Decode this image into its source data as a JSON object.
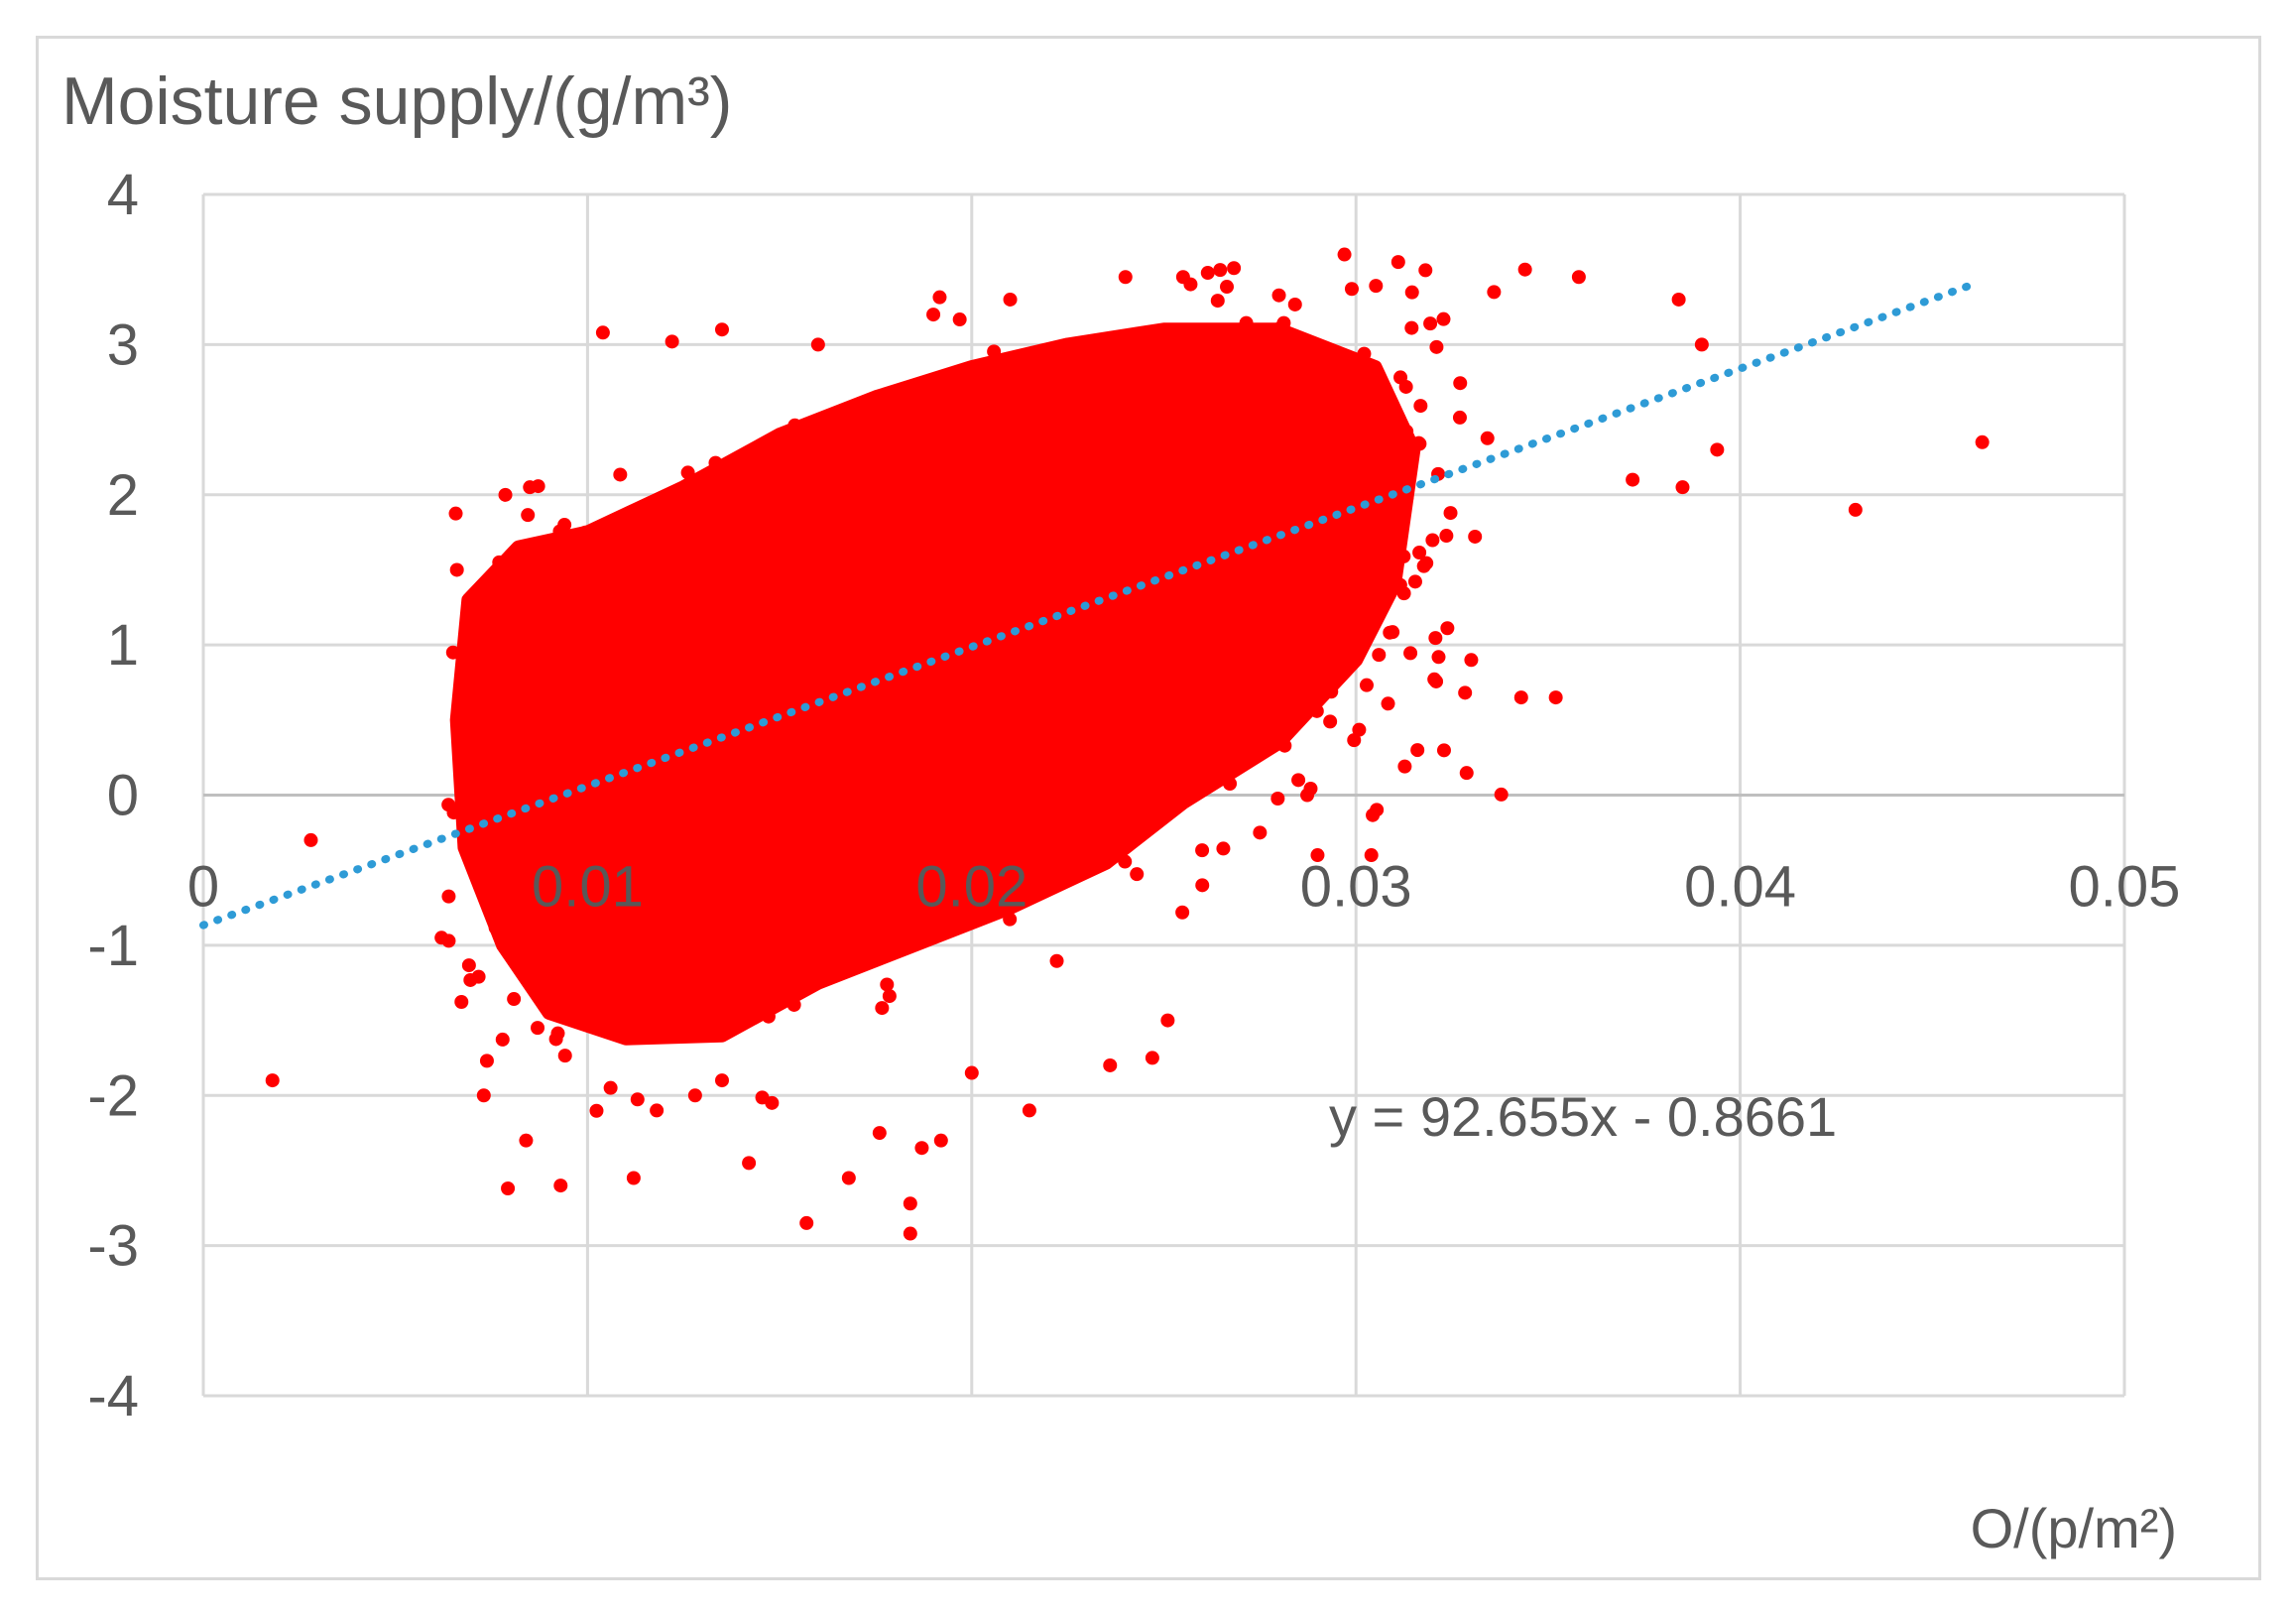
{
  "chart_data": {
    "type": "scatter",
    "title": "Moisture supply/(g/m³)",
    "xlabel": "O/(p/m²)",
    "ylabel": "",
    "xlim": [
      0,
      0.05
    ],
    "ylim": [
      -4,
      4
    ],
    "x_ticks": [
      "0",
      "0.01",
      "0.02",
      "0.03",
      "0.04",
      "0.05"
    ],
    "y_ticks": [
      "4",
      "3",
      "2",
      "1",
      "0",
      "-1",
      "-2",
      "-3",
      "-4"
    ],
    "grid": true,
    "legend": "none",
    "point_color": "#ff0000",
    "trendline": {
      "style": "dotted",
      "color": "#2e9bd6",
      "slope": 92.655,
      "intercept": -0.8661,
      "x_range": [
        0,
        0.0462
      ],
      "equation": "y = 92.655x - 0.8661"
    },
    "series": [
      {
        "points": [
          [
            0.0018,
            -1.9
          ],
          [
            0.0062,
            -0.95
          ],
          [
            0.0073,
            -2.0
          ],
          [
            0.0084,
            -2.3
          ],
          [
            0.0093,
            -2.6
          ],
          [
            0.0112,
            -2.55
          ],
          [
            0.0142,
            -2.45
          ],
          [
            0.0157,
            -2.85
          ],
          [
            0.0168,
            -2.55
          ],
          [
            0.0176,
            -2.25
          ],
          [
            0.0184,
            -2.92
          ],
          [
            0.0184,
            -2.72
          ],
          [
            0.0187,
            -2.35
          ],
          [
            0.0192,
            -2.3
          ],
          [
            0.02,
            -1.85
          ],
          [
            0.0215,
            -2.1
          ],
          [
            0.0236,
            -1.8
          ],
          [
            0.0247,
            -1.75
          ],
          [
            0.0251,
            -1.5
          ],
          [
            0.0028,
            -0.3
          ],
          [
            0.0104,
            3.08
          ],
          [
            0.0122,
            3.02
          ],
          [
            0.0135,
            3.1
          ],
          [
            0.016,
            3.0
          ],
          [
            0.019,
            3.2
          ],
          [
            0.021,
            3.3
          ],
          [
            0.024,
            3.45
          ],
          [
            0.0255,
            3.45
          ],
          [
            0.0297,
            3.6
          ],
          [
            0.0311,
            3.55
          ],
          [
            0.0344,
            3.5
          ],
          [
            0.0358,
            3.45
          ],
          [
            0.0384,
            3.3
          ],
          [
            0.039,
            3.0
          ],
          [
            0.0394,
            2.3
          ],
          [
            0.0385,
            2.05
          ],
          [
            0.0372,
            2.1
          ],
          [
            0.0343,
            0.65
          ],
          [
            0.0352,
            0.65
          ],
          [
            0.033,
            0.9
          ],
          [
            0.0316,
            0.3
          ],
          [
            0.029,
            -0.4
          ],
          [
            0.0304,
            -0.4
          ],
          [
            0.043,
            1.9
          ],
          [
            0.0463,
            2.35
          ],
          [
            0.0065,
            0.95
          ],
          [
            0.0066,
            1.5
          ],
          [
            0.0077,
            1.55
          ],
          [
            0.0085,
            2.05
          ],
          [
            0.0094,
            1.8
          ],
          [
            0.0087,
            -1.55
          ],
          [
            0.0106,
            -1.95
          ],
          [
            0.0118,
            -2.1
          ],
          [
            0.0128,
            -2.0
          ],
          [
            0.0135,
            -1.9
          ],
          [
            0.0148,
            -2.05
          ],
          [
            0.026,
            -0.6
          ],
          [
            0.0275,
            -0.25
          ],
          [
            0.0285,
            0.1
          ]
        ]
      }
    ]
  }
}
